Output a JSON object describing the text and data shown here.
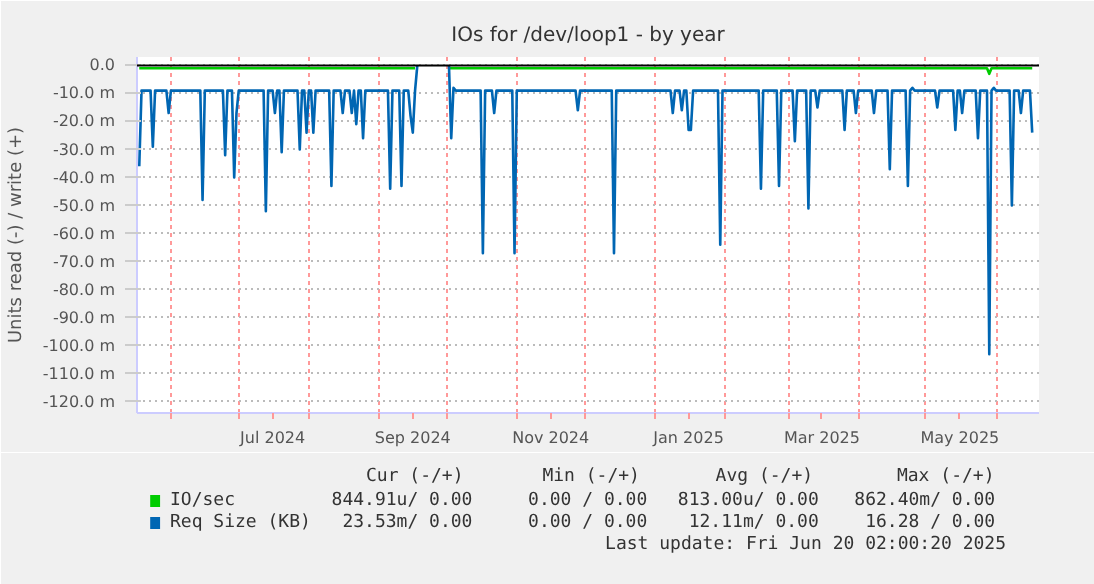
{
  "chart_data": {
    "type": "line",
    "title": "IOs for /dev/loop1 - by year",
    "ylabel": "Units read (-) / write (+)",
    "xlim": [
      "2024-05-17",
      "2025-06-20"
    ],
    "xticks": [
      {
        "value": "2024-06-01",
        "label": null
      },
      {
        "value": "2024-07-01",
        "label": null
      },
      {
        "value": "2024-08-01",
        "label": null
      },
      {
        "value": "2024-09-01",
        "label": null
      },
      {
        "value": "2024-10-01",
        "label": null
      },
      {
        "value": "2024-11-01",
        "label": null
      },
      {
        "value": "2024-12-01",
        "label": null
      },
      {
        "value": "2025-01-01",
        "label": null
      },
      {
        "value": "2025-02-01",
        "label": null
      },
      {
        "value": "2025-03-01",
        "label": null
      },
      {
        "value": "2025-04-01",
        "label": null
      },
      {
        "value": "2025-05-01",
        "label": null
      },
      {
        "value": "2025-06-01",
        "label": null
      },
      {
        "value": "2024-07-16",
        "label": "Jul 2024"
      },
      {
        "value": "2024-09-16",
        "label": "Sep 2024"
      },
      {
        "value": "2024-11-16",
        "label": "Nov 2024"
      },
      {
        "value": "2025-01-16",
        "label": "Jan 2025"
      },
      {
        "value": "2025-03-16",
        "label": "Mar 2025"
      },
      {
        "value": "2025-05-16",
        "label": "May 2025"
      }
    ],
    "ylim": [
      -124,
      3
    ],
    "yticks": [
      {
        "value": 0,
        "label": "0.0"
      },
      {
        "value": -10,
        "label": "-10.0 m"
      },
      {
        "value": -20,
        "label": "-20.0 m"
      },
      {
        "value": -30,
        "label": "-30.0 m"
      },
      {
        "value": -40,
        "label": "-40.0 m"
      },
      {
        "value": -50,
        "label": "-50.0 m"
      },
      {
        "value": -60,
        "label": "-60.0 m"
      },
      {
        "value": -70,
        "label": "-70.0 m"
      },
      {
        "value": -80,
        "label": "-80.0 m"
      },
      {
        "value": -90,
        "label": "-90.0 m"
      },
      {
        "value": -100,
        "label": "-100.0 m"
      },
      {
        "value": -110,
        "label": "-110.0 m"
      },
      {
        "value": -120,
        "label": "-120.0 m"
      }
    ],
    "grid": true,
    "legend": "bottom",
    "line_style": "solid",
    "ref_lines": [
      {
        "axis": "y",
        "value": 0,
        "color": "#000000"
      }
    ],
    "series": [
      {
        "name": "IO/sec",
        "color": "#00cc00",
        "x": [
          "2024-05-18",
          "2024-09-17",
          "2024-09-18",
          "2024-10-02",
          "2025-05-28",
          "2025-05-29",
          "2025-05-30",
          "2025-06-17"
        ],
        "values": [
          -1,
          -1,
          null,
          -1,
          -1,
          -3,
          -1,
          -1
        ]
      },
      {
        "name": "Req Size (KB)",
        "color": "#0066b3",
        "x": [
          "2024-05-18",
          "2024-05-19",
          "2024-05-23",
          "2024-05-24",
          "2024-05-25",
          "2024-05-30",
          "2024-05-31",
          "2024-06-01",
          "2024-06-14",
          "2024-06-15",
          "2024-06-16",
          "2024-06-24",
          "2024-06-25",
          "2024-06-26",
          "2024-06-28",
          "2024-06-29",
          "2024-06-30",
          "2024-07-01",
          "2024-07-12",
          "2024-07-13",
          "2024-07-14",
          "2024-07-16",
          "2024-07-17",
          "2024-07-18",
          "2024-07-19",
          "2024-07-20",
          "2024-07-21",
          "2024-07-27",
          "2024-07-28",
          "2024-07-29",
          "2024-07-30",
          "2024-07-31",
          "2024-08-01",
          "2024-08-02",
          "2024-08-03",
          "2024-08-04",
          "2024-08-10",
          "2024-08-11",
          "2024-08-12",
          "2024-08-15",
          "2024-08-16",
          "2024-08-17",
          "2024-08-19",
          "2024-08-20",
          "2024-08-21",
          "2024-08-22",
          "2024-08-23",
          "2024-08-24",
          "2024-08-25",
          "2024-08-26",
          "2024-09-05",
          "2024-09-06",
          "2024-09-07",
          "2024-09-10",
          "2024-09-11",
          "2024-09-12",
          "2024-09-14",
          "2024-09-15",
          "2024-09-16",
          "2024-09-17",
          "2024-09-18",
          "2024-09-19",
          "2024-10-02",
          "2024-10-03",
          "2024-10-04",
          "2024-10-05",
          "2024-10-16",
          "2024-10-17",
          "2024-10-18",
          "2024-10-21",
          "2024-10-22",
          "2024-10-23",
          "2024-10-30",
          "2024-10-31",
          "2024-11-01",
          "2024-11-27",
          "2024-11-28",
          "2024-11-29",
          "2024-12-13",
          "2024-12-14",
          "2024-12-15",
          "2025-01-08",
          "2025-01-09",
          "2025-01-10",
          "2025-01-12",
          "2025-01-13",
          "2025-01-14",
          "2025-01-15",
          "2025-01-16",
          "2025-01-17",
          "2025-01-18",
          "2025-01-29",
          "2025-01-30",
          "2025-01-31",
          "2025-02-16",
          "2025-02-17",
          "2025-02-18",
          "2025-02-24",
          "2025-02-25",
          "2025-02-26",
          "2025-03-03",
          "2025-03-04",
          "2025-03-05",
          "2025-03-09",
          "2025-03-10",
          "2025-03-11",
          "2025-03-13",
          "2025-03-14",
          "2025-03-15",
          "2025-03-25",
          "2025-03-26",
          "2025-03-27",
          "2025-03-30",
          "2025-03-31",
          "2025-04-01",
          "2025-04-07",
          "2025-04-08",
          "2025-04-09",
          "2025-04-14",
          "2025-04-15",
          "2025-04-16",
          "2025-04-22",
          "2025-04-23",
          "2025-04-24",
          "2025-04-25",
          "2025-04-26",
          "2025-05-05",
          "2025-05-06",
          "2025-05-07",
          "2025-05-13",
          "2025-05-14",
          "2025-05-15",
          "2025-05-16",
          "2025-05-17",
          "2025-05-18",
          "2025-05-23",
          "2025-05-24",
          "2025-05-25",
          "2025-05-28",
          "2025-05-29",
          "2025-05-30",
          "2025-05-31",
          "2025-06-01",
          "2025-06-07",
          "2025-06-08",
          "2025-06-09",
          "2025-06-11",
          "2025-06-12",
          "2025-06-13",
          "2025-06-16",
          "2025-06-17"
        ],
        "values": [
          -36,
          -9,
          -9,
          -29,
          -9,
          -9,
          -17,
          -9,
          -9,
          -48,
          -9,
          -9,
          -32,
          -9,
          -9,
          -40,
          -17,
          -9,
          -9,
          -52,
          -9,
          -9,
          -17,
          -9,
          -9,
          -31,
          -9,
          -9,
          -30,
          -9,
          -9,
          -24,
          -9,
          -9,
          -24,
          -9,
          -9,
          -43,
          -9,
          -9,
          -17,
          -9,
          -9,
          -17,
          -9,
          -21,
          -9,
          -9,
          -26,
          -9,
          -9,
          -44,
          -9,
          -9,
          -43,
          -9,
          -9,
          -18,
          -24,
          -9,
          0,
          null,
          0,
          -26,
          -8,
          -9,
          -9,
          -67,
          -9,
          -9,
          -17,
          -9,
          -9,
          -67,
          -9,
          -9,
          -16,
          -9,
          -9,
          -67,
          -9,
          -9,
          -17,
          -9,
          -9,
          -16,
          -9,
          -9,
          -23,
          -23,
          -9,
          -9,
          -64,
          -9,
          -9,
          -44,
          -9,
          -9,
          -43,
          -9,
          -9,
          -27,
          -9,
          -9,
          -51,
          -9,
          -9,
          -15,
          -9,
          -9,
          -23,
          -9,
          -9,
          -17,
          -9,
          -9,
          -17,
          -9,
          -9,
          -37,
          -9,
          -9,
          -43,
          -9,
          -8,
          -9,
          -9,
          -15,
          -9,
          -9,
          -23,
          -9,
          -9,
          -17,
          -9,
          -9,
          -26,
          -9,
          -9,
          -103,
          -9,
          -8,
          -9,
          -9,
          -50,
          -9,
          -9,
          -17,
          -9,
          -9,
          -24
        ]
      }
    ],
    "annotations": [
      "Cur (-/+)",
      "Min (-/+)",
      "Avg (-/+)",
      "Max (-/+)",
      "844.91u/  0.00",
      "0.00 /  0.00",
      "813.00u/  0.00",
      "862.40m/  0.00",
      "23.53m/  0.00",
      "0.00 /  0.00",
      "12.11m/  0.00",
      "16.28 /  0.00",
      "Last update: Fri Jun 20 02:00:20 2025"
    ]
  }
}
